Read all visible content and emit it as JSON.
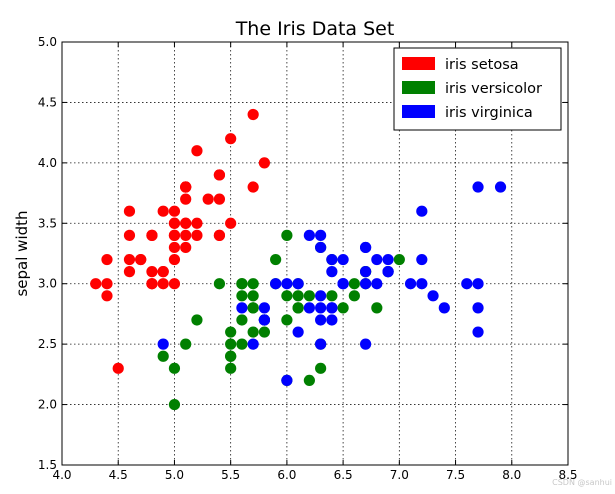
{
  "chart_data": {
    "type": "scatter",
    "title": "The Iris Data Set",
    "xlabel": "",
    "ylabel": "sepal width",
    "xlim": [
      4.0,
      8.5
    ],
    "ylim": [
      1.5,
      5.0
    ],
    "x_ticks": [
      "4.0",
      "4.5",
      "5.0",
      "5.5",
      "6.0",
      "6.5",
      "7.0",
      "7.5",
      "8.0",
      "8.5"
    ],
    "y_ticks": [
      "1.5",
      "2.0",
      "2.5",
      "3.0",
      "3.5",
      "4.0",
      "4.5",
      "5.0"
    ],
    "grid": true,
    "legend_position": "top-right",
    "series": [
      {
        "name": "iris setosa",
        "color": "#ff0000",
        "points": [
          [
            5.1,
            3.5
          ],
          [
            4.9,
            3.0
          ],
          [
            4.7,
            3.2
          ],
          [
            4.6,
            3.1
          ],
          [
            5.0,
            3.6
          ],
          [
            5.4,
            3.9
          ],
          [
            4.6,
            3.4
          ],
          [
            5.0,
            3.4
          ],
          [
            4.4,
            2.9
          ],
          [
            4.9,
            3.1
          ],
          [
            5.4,
            3.7
          ],
          [
            4.8,
            3.4
          ],
          [
            4.8,
            3.0
          ],
          [
            4.3,
            3.0
          ],
          [
            5.8,
            4.0
          ],
          [
            5.7,
            4.4
          ],
          [
            5.4,
            3.9
          ],
          [
            5.1,
            3.5
          ],
          [
            5.7,
            3.8
          ],
          [
            5.1,
            3.8
          ],
          [
            5.4,
            3.4
          ],
          [
            5.1,
            3.7
          ],
          [
            4.6,
            3.6
          ],
          [
            5.1,
            3.3
          ],
          [
            4.8,
            3.4
          ],
          [
            5.0,
            3.0
          ],
          [
            5.0,
            3.4
          ],
          [
            5.2,
            3.5
          ],
          [
            5.2,
            3.4
          ],
          [
            4.7,
            3.2
          ],
          [
            4.8,
            3.1
          ],
          [
            5.4,
            3.4
          ],
          [
            5.2,
            4.1
          ],
          [
            5.5,
            4.2
          ],
          [
            4.9,
            3.1
          ],
          [
            5.0,
            3.2
          ],
          [
            5.5,
            3.5
          ],
          [
            4.9,
            3.6
          ],
          [
            4.4,
            3.0
          ],
          [
            5.1,
            3.4
          ],
          [
            5.0,
            3.5
          ],
          [
            4.5,
            2.3
          ],
          [
            4.4,
            3.2
          ],
          [
            5.0,
            3.5
          ],
          [
            5.1,
            3.8
          ],
          [
            4.8,
            3.0
          ],
          [
            5.1,
            3.8
          ],
          [
            4.6,
            3.2
          ],
          [
            5.3,
            3.7
          ],
          [
            5.0,
            3.3
          ]
        ]
      },
      {
        "name": "iris versicolor",
        "color": "#008000",
        "points": [
          [
            7.0,
            3.2
          ],
          [
            6.4,
            3.2
          ],
          [
            6.9,
            3.1
          ],
          [
            5.5,
            2.3
          ],
          [
            6.5,
            2.8
          ],
          [
            5.7,
            2.8
          ],
          [
            6.3,
            3.3
          ],
          [
            4.9,
            2.4
          ],
          [
            6.6,
            2.9
          ],
          [
            5.2,
            2.7
          ],
          [
            5.0,
            2.0
          ],
          [
            5.9,
            3.0
          ],
          [
            6.0,
            2.2
          ],
          [
            6.1,
            2.9
          ],
          [
            5.6,
            2.9
          ],
          [
            6.7,
            3.1
          ],
          [
            5.6,
            3.0
          ],
          [
            5.8,
            2.7
          ],
          [
            6.2,
            2.2
          ],
          [
            5.6,
            2.5
          ],
          [
            5.9,
            3.2
          ],
          [
            6.1,
            2.8
          ],
          [
            6.3,
            2.5
          ],
          [
            6.1,
            2.8
          ],
          [
            6.4,
            2.9
          ],
          [
            6.6,
            3.0
          ],
          [
            6.8,
            2.8
          ],
          [
            6.7,
            3.0
          ],
          [
            6.0,
            2.9
          ],
          [
            5.7,
            2.6
          ],
          [
            5.5,
            2.4
          ],
          [
            5.5,
            2.4
          ],
          [
            5.8,
            2.7
          ],
          [
            6.0,
            2.7
          ],
          [
            5.4,
            3.0
          ],
          [
            6.0,
            3.4
          ],
          [
            6.7,
            3.1
          ],
          [
            6.3,
            2.3
          ],
          [
            5.6,
            3.0
          ],
          [
            5.5,
            2.5
          ],
          [
            5.5,
            2.6
          ],
          [
            6.1,
            3.0
          ],
          [
            5.8,
            2.6
          ],
          [
            5.0,
            2.3
          ],
          [
            5.6,
            2.7
          ],
          [
            5.7,
            3.0
          ],
          [
            5.7,
            2.9
          ],
          [
            6.2,
            2.9
          ],
          [
            5.1,
            2.5
          ],
          [
            5.7,
            2.8
          ]
        ]
      },
      {
        "name": "iris virginica",
        "color": "#0000ff",
        "points": [
          [
            6.3,
            3.3
          ],
          [
            5.8,
            2.7
          ],
          [
            7.1,
            3.0
          ],
          [
            6.3,
            2.9
          ],
          [
            6.5,
            3.0
          ],
          [
            7.6,
            3.0
          ],
          [
            4.9,
            2.5
          ],
          [
            7.3,
            2.9
          ],
          [
            6.7,
            2.5
          ],
          [
            7.2,
            3.6
          ],
          [
            6.5,
            3.2
          ],
          [
            6.4,
            2.7
          ],
          [
            6.8,
            3.0
          ],
          [
            5.7,
            2.5
          ],
          [
            5.8,
            2.8
          ],
          [
            6.4,
            3.2
          ],
          [
            6.5,
            3.0
          ],
          [
            7.7,
            3.8
          ],
          [
            7.7,
            2.6
          ],
          [
            6.0,
            2.2
          ],
          [
            6.9,
            3.2
          ],
          [
            5.6,
            2.8
          ],
          [
            7.7,
            2.8
          ],
          [
            6.3,
            2.7
          ],
          [
            6.7,
            3.3
          ],
          [
            7.2,
            3.2
          ],
          [
            6.2,
            2.8
          ],
          [
            6.1,
            3.0
          ],
          [
            6.4,
            2.8
          ],
          [
            7.2,
            3.0
          ],
          [
            7.4,
            2.8
          ],
          [
            7.9,
            3.8
          ],
          [
            6.4,
            2.8
          ],
          [
            6.3,
            2.8
          ],
          [
            6.1,
            2.6
          ],
          [
            7.7,
            3.0
          ],
          [
            6.3,
            3.4
          ],
          [
            6.4,
            3.1
          ],
          [
            6.0,
            3.0
          ],
          [
            6.9,
            3.1
          ],
          [
            6.7,
            3.1
          ],
          [
            6.9,
            3.1
          ],
          [
            5.8,
            2.7
          ],
          [
            6.8,
            3.2
          ],
          [
            6.7,
            3.3
          ],
          [
            6.7,
            3.0
          ],
          [
            6.3,
            2.5
          ],
          [
            6.5,
            3.0
          ],
          [
            6.2,
            3.4
          ],
          [
            5.9,
            3.0
          ]
        ]
      }
    ]
  },
  "watermark": "CSDN @sanhui"
}
